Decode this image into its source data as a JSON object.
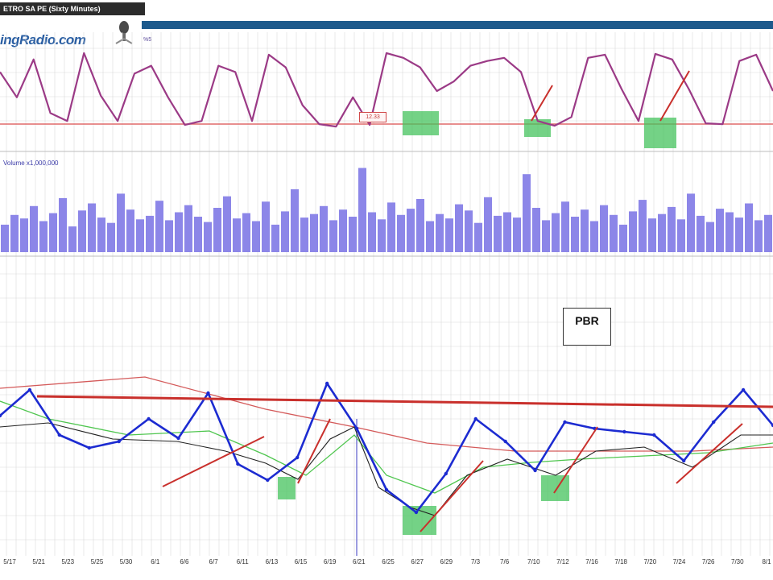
{
  "header": {
    "title": "ETRO SA PE (Sixty Minutes)",
    "logo_text": "ingRadio.com",
    "oscillator_label": "%5"
  },
  "volume_panel": {
    "label": "Volume x1,000,000"
  },
  "annotations": {
    "symbol": "PBR",
    "oscillator_value": "12.33"
  },
  "colors": {
    "background": "#ffffff",
    "grid": "#d9d9d9",
    "title_bar": "#1d5a8c",
    "price": "#1c2bd1",
    "oscillator": "#9b3a86",
    "oversold_line": "#e06a6a",
    "volume": "#8c86e8",
    "highlight": "#45c35e",
    "trendline": "#c9302c",
    "ma_black": "#222222",
    "ma_green": "#4fc64f",
    "ma_red": "#d45a5a"
  },
  "icons": [
    "microphone-icon"
  ],
  "chart_data": [
    {
      "type": "line",
      "panel": "oscillator",
      "title": "",
      "series": [
        {
          "values": [
            72,
            40,
            88,
            20,
            10,
            96,
            42,
            10,
            70,
            80,
            40,
            5,
            10,
            80,
            72,
            10,
            94,
            78,
            30,
            6,
            3,
            40,
            5,
            96,
            90,
            78,
            48,
            60,
            80,
            86,
            90,
            72,
            10,
            4,
            15,
            90,
            94,
            50,
            10,
            95,
            88,
            50,
            7,
            6,
            86,
            94,
            48
          ]
        }
      ],
      "annotations": [
        "oversold line",
        "green highlight zones"
      ]
    },
    {
      "type": "bar",
      "panel": "volume",
      "title": "",
      "ylabel": "Volume x1,000,000",
      "values": [
        0.31,
        0.42,
        0.38,
        0.52,
        0.35,
        0.44,
        0.61,
        0.29,
        0.47,
        0.55,
        0.39,
        0.33,
        0.66,
        0.48,
        0.37,
        0.41,
        0.58,
        0.36,
        0.45,
        0.53,
        0.4,
        0.34,
        0.5,
        0.63,
        0.38,
        0.44,
        0.35,
        0.57,
        0.31,
        0.46,
        0.71,
        0.39,
        0.43,
        0.52,
        0.36,
        0.48,
        0.4,
        0.95,
        0.45,
        0.37,
        0.56,
        0.42,
        0.49,
        0.6,
        0.35,
        0.43,
        0.38,
        0.54,
        0.47,
        0.33,
        0.62,
        0.41,
        0.45,
        0.39,
        0.88,
        0.5,
        0.36,
        0.44,
        0.57,
        0.4,
        0.48,
        0.35,
        0.53,
        0.42,
        0.31,
        0.46,
        0.59,
        0.38,
        0.43,
        0.51,
        0.37,
        0.66,
        0.41,
        0.34,
        0.49,
        0.45,
        0.39,
        0.55,
        0.36,
        0.42
      ]
    },
    {
      "type": "line",
      "panel": "price",
      "title": "",
      "categories": [
        "5/17",
        "5/21",
        "5/23",
        "5/25",
        "5/30",
        "6/1",
        "6/6",
        "6/7",
        "6/11",
        "6/13",
        "6/15",
        "6/19",
        "6/21",
        "6/25",
        "6/27",
        "6/29",
        "7/3",
        "7/6",
        "7/10",
        "7/12",
        "7/16",
        "7/18",
        "7/20",
        "7/24",
        "7/26",
        "7/30",
        "8/1"
      ],
      "series": [
        {
          "values": [
            39.6,
            40.4,
            39.0,
            38.6,
            38.8,
            39.5,
            38.9,
            40.3,
            38.1,
            37.6,
            38.3,
            40.6,
            39.2,
            37.3,
            36.6,
            37.8,
            39.5,
            38.8,
            37.9,
            39.4,
            39.2,
            39.1,
            39.0,
            38.2,
            39.4,
            40.4,
            39.3
          ]
        }
      ],
      "annotations": [
        "horizontal resistance line",
        "rising trendlines",
        "moving averages",
        "green highlight zones"
      ]
    }
  ]
}
